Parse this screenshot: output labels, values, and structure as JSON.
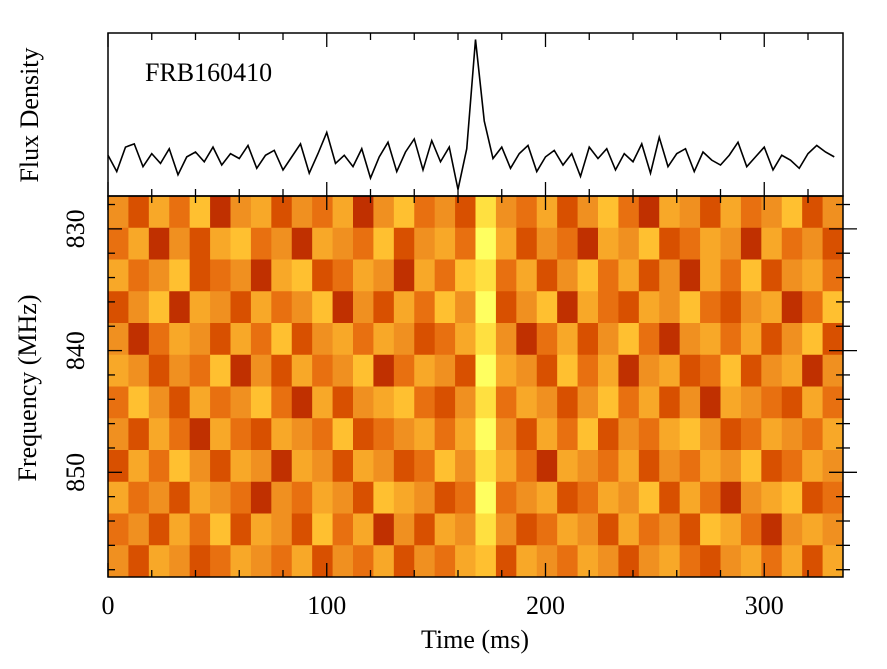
{
  "chart_data": {
    "type": "waterfall",
    "annotation": "FRB160410",
    "flux_label": "Flux Density",
    "ylabel": "Frequency (MHz)",
    "xlabel": "Time (ms)",
    "xlim": [
      0,
      336
    ],
    "xticks": [
      0,
      100,
      200,
      300
    ],
    "xminor": [
      20,
      40,
      60,
      80,
      120,
      140,
      160,
      180,
      220,
      240,
      260,
      280,
      320
    ],
    "ylim": [
      827.3,
      858.6
    ],
    "yticks": [
      830,
      840,
      850
    ],
    "yminor": [
      828,
      832,
      834,
      836,
      838,
      842,
      844,
      846,
      848,
      852,
      854,
      856,
      858
    ],
    "flux_ylim": [
      0,
      10
    ],
    "line_color": "#000000",
    "x": [
      0,
      4,
      8,
      12,
      16,
      20,
      24,
      28,
      32,
      36,
      40,
      44,
      48,
      52,
      56,
      60,
      64,
      68,
      72,
      76,
      80,
      84,
      88,
      92,
      96,
      100,
      104,
      108,
      112,
      116,
      120,
      124,
      128,
      132,
      136,
      140,
      144,
      148,
      152,
      156,
      160,
      164,
      168,
      172,
      176,
      180,
      184,
      188,
      192,
      196,
      200,
      204,
      208,
      212,
      216,
      220,
      224,
      228,
      232,
      236,
      240,
      244,
      248,
      252,
      256,
      260,
      264,
      268,
      272,
      276,
      280,
      284,
      288,
      292,
      296,
      300,
      304,
      308,
      312,
      316,
      320,
      324,
      328,
      332
    ],
    "values": [
      2.5,
      1.5,
      3.0,
      3.2,
      1.8,
      2.6,
      2.0,
      2.9,
      1.3,
      2.4,
      2.7,
      2.1,
      3.0,
      1.9,
      2.6,
      2.3,
      3.1,
      1.7,
      2.5,
      2.8,
      1.6,
      2.4,
      3.2,
      1.4,
      2.6,
      3.9,
      2.0,
      2.5,
      1.8,
      2.9,
      1.1,
      2.4,
      3.3,
      1.5,
      2.7,
      3.5,
      1.6,
      3.4,
      2.1,
      3.0,
      0.4,
      2.9,
      9.6,
      4.6,
      2.3,
      3.0,
      1.7,
      2.6,
      3.1,
      1.5,
      2.4,
      2.8,
      1.9,
      2.6,
      1.2,
      3.0,
      2.3,
      2.9,
      1.6,
      2.6,
      2.1,
      3.2,
      1.4,
      3.6,
      1.8,
      2.6,
      2.9,
      1.5,
      2.7,
      2.2,
      1.9,
      2.5,
      3.3,
      1.8,
      2.4,
      3.0,
      1.6,
      2.5,
      2.2,
      1.7,
      2.6,
      3.1,
      2.7,
      2.4
    ],
    "colormap": [
      "#7a0000",
      "#a01000",
      "#c03000",
      "#d85000",
      "#e87010",
      "#f09020",
      "#f8a828",
      "#ffc030",
      "#ffe040",
      "#ffff60"
    ],
    "z": [
      [
        5,
        3,
        6,
        4,
        7,
        2,
        5,
        6,
        3,
        5,
        4,
        6,
        2,
        5,
        7,
        4,
        5,
        3,
        8,
        5,
        4,
        6,
        3,
        5,
        7,
        4,
        2,
        6,
        5,
        3,
        6,
        4,
        5,
        7,
        3,
        5
      ],
      [
        4,
        6,
        2,
        5,
        3,
        6,
        7,
        4,
        5,
        2,
        6,
        5,
        4,
        7,
        3,
        5,
        6,
        4,
        9,
        6,
        3,
        5,
        4,
        2,
        6,
        5,
        7,
        3,
        4,
        6,
        5,
        2,
        6,
        4,
        5,
        3
      ],
      [
        6,
        4,
        5,
        7,
        3,
        4,
        5,
        2,
        6,
        7,
        3,
        4,
        6,
        5,
        2,
        6,
        4,
        7,
        8,
        4,
        6,
        3,
        5,
        7,
        4,
        6,
        3,
        5,
        2,
        6,
        4,
        7,
        3,
        5,
        6,
        4
      ],
      [
        3,
        5,
        7,
        2,
        6,
        5,
        3,
        6,
        4,
        5,
        7,
        2,
        5,
        3,
        6,
        4,
        7,
        5,
        9,
        3,
        5,
        7,
        2,
        6,
        4,
        3,
        6,
        5,
        7,
        4,
        3,
        5,
        6,
        2,
        4,
        7
      ],
      [
        5,
        2,
        4,
        6,
        5,
        3,
        6,
        4,
        7,
        3,
        5,
        6,
        4,
        6,
        5,
        3,
        4,
        6,
        8,
        5,
        2,
        4,
        6,
        3,
        5,
        7,
        4,
        2,
        5,
        6,
        4,
        6,
        3,
        5,
        7,
        3
      ],
      [
        6,
        5,
        3,
        5,
        4,
        7,
        2,
        5,
        3,
        6,
        4,
        5,
        7,
        2,
        4,
        6,
        5,
        3,
        9,
        6,
        5,
        3,
        7,
        4,
        6,
        2,
        5,
        6,
        3,
        4,
        7,
        3,
        5,
        6,
        2,
        5
      ],
      [
        4,
        7,
        5,
        3,
        6,
        4,
        5,
        7,
        4,
        2,
        6,
        3,
        5,
        6,
        7,
        4,
        3,
        5,
        8,
        4,
        6,
        5,
        3,
        5,
        7,
        4,
        6,
        3,
        5,
        2,
        6,
        5,
        4,
        3,
        6,
        4
      ],
      [
        5,
        3,
        6,
        4,
        2,
        6,
        4,
        3,
        6,
        5,
        4,
        7,
        3,
        4,
        5,
        6,
        4,
        6,
        9,
        5,
        3,
        6,
        4,
        7,
        3,
        5,
        4,
        6,
        7,
        5,
        3,
        4,
        6,
        5,
        4,
        6
      ],
      [
        3,
        6,
        4,
        7,
        5,
        3,
        6,
        5,
        2,
        6,
        5,
        3,
        6,
        5,
        3,
        4,
        7,
        5,
        8,
        6,
        4,
        2,
        6,
        5,
        4,
        6,
        3,
        5,
        4,
        6,
        5,
        7,
        3,
        4,
        6,
        5
      ],
      [
        6,
        4,
        5,
        3,
        6,
        5,
        4,
        2,
        5,
        4,
        6,
        5,
        3,
        7,
        6,
        5,
        3,
        4,
        9,
        4,
        5,
        6,
        3,
        4,
        6,
        5,
        7,
        3,
        6,
        4,
        2,
        5,
        6,
        7,
        3,
        4
      ],
      [
        4,
        5,
        3,
        6,
        4,
        7,
        3,
        6,
        5,
        3,
        7,
        4,
        6,
        2,
        5,
        3,
        6,
        5,
        8,
        5,
        3,
        4,
        6,
        5,
        3,
        6,
        4,
        5,
        3,
        7,
        6,
        4,
        2,
        5,
        6,
        5
      ],
      [
        5,
        3,
        6,
        5,
        3,
        4,
        6,
        5,
        4,
        6,
        3,
        5,
        4,
        6,
        3,
        5,
        4,
        6,
        7,
        3,
        6,
        5,
        4,
        6,
        5,
        3,
        5,
        6,
        4,
        3,
        5,
        6,
        4,
        6,
        3,
        6
      ]
    ]
  }
}
